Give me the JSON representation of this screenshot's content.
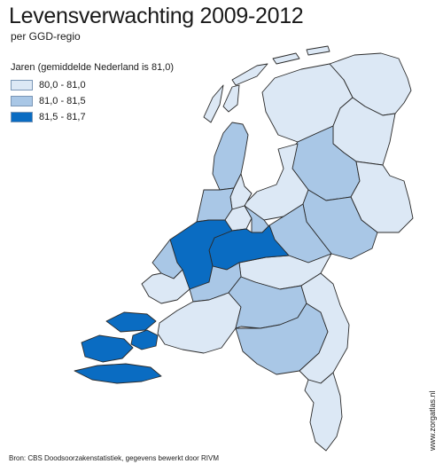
{
  "title": "Levensverwachting 2009-2012",
  "subtitle": "per GGD-regio",
  "legend": {
    "heading": "Jaren (gemiddelde Nederland is 81,0)",
    "items": [
      {
        "label": "80,0 - 81,0",
        "color": "#dce8f5"
      },
      {
        "label": "81,0 - 81,5",
        "color": "#a9c7e6"
      },
      {
        "label": "81,5 - 81,7",
        "color": "#0a6cc2"
      }
    ]
  },
  "map": {
    "border_color": "#2a2a2a",
    "water_color": "#ffffff",
    "regions": [
      {
        "name": "Groningen",
        "class": 0
      },
      {
        "name": "Friesland",
        "class": 0
      },
      {
        "name": "Drenthe",
        "class": 0
      },
      {
        "name": "IJsselland",
        "class": 1
      },
      {
        "name": "Twente",
        "class": 0
      },
      {
        "name": "Flevoland",
        "class": 0
      },
      {
        "name": "Noord- en Oost-Gelderland",
        "class": 1
      },
      {
        "name": "Gelderland-Midden",
        "class": 1
      },
      {
        "name": "Gelderland-Zuid",
        "class": 0
      },
      {
        "name": "Hollands Noorden",
        "class": 1
      },
      {
        "name": "Zaanstreek-Waterland",
        "class": 0
      },
      {
        "name": "Kennemerland",
        "class": 1
      },
      {
        "name": "Amsterdam",
        "class": 0
      },
      {
        "name": "Gooi en Vechtstreek",
        "class": 1
      },
      {
        "name": "Utrecht",
        "class": 2
      },
      {
        "name": "Hollands Midden",
        "class": 2
      },
      {
        "name": "Haaglanden",
        "class": 1
      },
      {
        "name": "Rotterdam-Rijnmond",
        "class": 0
      },
      {
        "name": "Zuid-Holland Zuid",
        "class": 1
      },
      {
        "name": "Zeeland",
        "class": 2
      },
      {
        "name": "West-Brabant",
        "class": 0
      },
      {
        "name": "Hart voor Brabant",
        "class": 1
      },
      {
        "name": "Brabant-Zuidoost",
        "class": 1
      },
      {
        "name": "Limburg-Noord",
        "class": 0
      },
      {
        "name": "Zuid-Limburg",
        "class": 0
      }
    ]
  },
  "source": "Bron: CBS Doodsoorzakenstatistiek, gegevens bewerkt door RIVM",
  "site": "www.zorgatlas.nl"
}
